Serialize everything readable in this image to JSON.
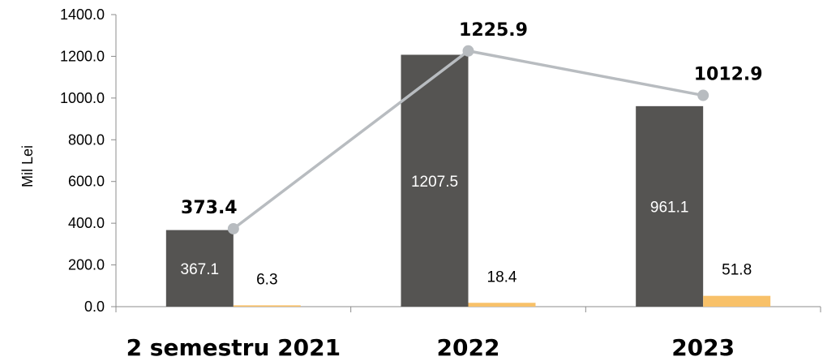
{
  "chart_data": {
    "type": "bar",
    "categories": [
      "2 semestru 2021",
      "2022",
      "2023"
    ],
    "ylabel": "Mil Lei",
    "ylim": [
      0,
      1400
    ],
    "y_ticks": [
      "0.0",
      "200.0",
      "400.0",
      "600.0",
      "800.0",
      "1000.0",
      "1200.0",
      "1400.0"
    ],
    "grid": false,
    "legend": "none",
    "series": [
      {
        "kind": "bar",
        "color": "#555452",
        "values": [
          367.1,
          1207.5,
          961.1
        ],
        "labels": [
          "367.1",
          "1207.5",
          "961.1"
        ]
      },
      {
        "kind": "bar",
        "color": "#F8C169",
        "values": [
          6.3,
          18.4,
          51.8
        ],
        "labels": [
          "6.3",
          "18.4",
          "51.8"
        ]
      },
      {
        "kind": "line",
        "color": "#B8BCC0",
        "values": [
          373.4,
          1225.9,
          1012.9
        ],
        "labels": [
          "373.4",
          "1225.9",
          "1012.9"
        ]
      }
    ]
  }
}
